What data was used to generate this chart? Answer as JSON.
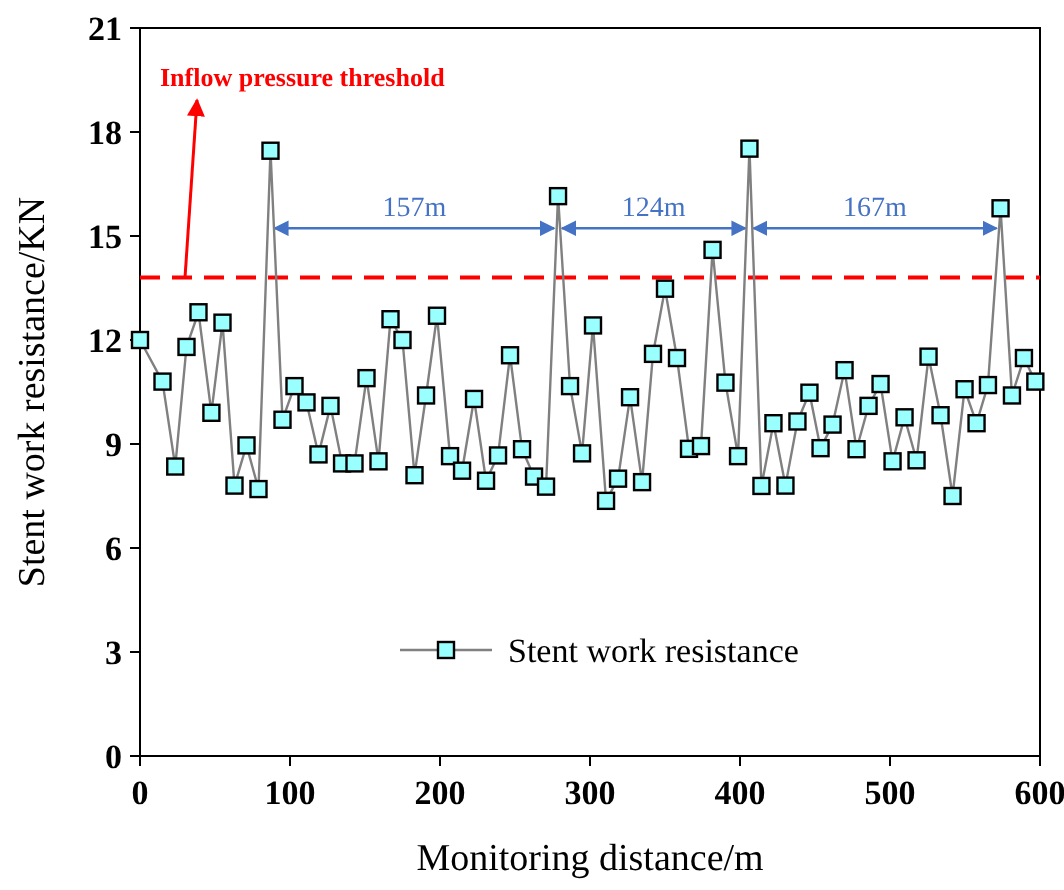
{
  "chart_data": {
    "type": "line",
    "xlabel": "Monitoring distance/m",
    "ylabel": "Stent work resistance/KN",
    "x": [
      0,
      15,
      23.5,
      31,
      39,
      47.6,
      55,
      63,
      71,
      79,
      87,
      95,
      103,
      111,
      119,
      127,
      134.7,
      143,
      151,
      159,
      167,
      175,
      183,
      190.7,
      198,
      206.7,
      214.7,
      222.7,
      230.7,
      238.7,
      246.7,
      254.7,
      262.7,
      270.7,
      278.7,
      286.7,
      294.7,
      302,
      310.7,
      318.7,
      326.7,
      334.7,
      342,
      350,
      358,
      366,
      374,
      381.7,
      390.3,
      398.7,
      406.3,
      414.3,
      422.3,
      430.3,
      438.3,
      446.3,
      453.7,
      461.7,
      469.7,
      477.7,
      485.7,
      493.7,
      501.7,
      509.7,
      517.7,
      525.7,
      533.7,
      541.7,
      549.7,
      557.7,
      565.3,
      573.7,
      581.3,
      589.3,
      596.9
    ],
    "series": [
      {
        "name": "Stent work resistance",
        "color": "#99ffff",
        "values": [
          12.0,
          10.8,
          8.35,
          11.8,
          12.8,
          9.9,
          12.5,
          7.8,
          8.96,
          7.7,
          17.46,
          9.7,
          10.67,
          10.2,
          8.7,
          10.1,
          8.44,
          8.44,
          10.9,
          8.5,
          12.6,
          12.0,
          8.1,
          10.4,
          12.7,
          8.65,
          8.23,
          10.3,
          7.94,
          8.67,
          11.56,
          8.85,
          8.06,
          7.77,
          16.15,
          10.67,
          8.73,
          12.42,
          7.36,
          8.0,
          10.35,
          7.9,
          11.6,
          13.48,
          11.48,
          8.86,
          8.94,
          14.6,
          10.77,
          8.65,
          17.52,
          7.79,
          9.6,
          7.8,
          9.65,
          10.48,
          8.88,
          9.56,
          11.13,
          8.85,
          10.1,
          10.73,
          8.5,
          9.77,
          8.53,
          11.52,
          9.83,
          7.5,
          10.58,
          9.6,
          10.7,
          15.8,
          10.4,
          11.48,
          10.8
        ]
      }
    ],
    "xlim": [
      0,
      600
    ],
    "xticks": [
      0,
      100,
      200,
      300,
      400,
      500,
      600
    ],
    "ylim": [
      0,
      21
    ],
    "yticks": [
      0,
      3,
      6,
      9,
      12,
      15,
      18,
      21
    ],
    "marker": "square",
    "legend": "bottom",
    "grid": false,
    "ref_lines": [
      {
        "axis": "y",
        "value": 13.8,
        "label": "Inflow pressure threshold",
        "color": "#ff0000",
        "line_style": "dashed"
      }
    ],
    "annotations": [
      "157m",
      "124m",
      "167m"
    ]
  }
}
